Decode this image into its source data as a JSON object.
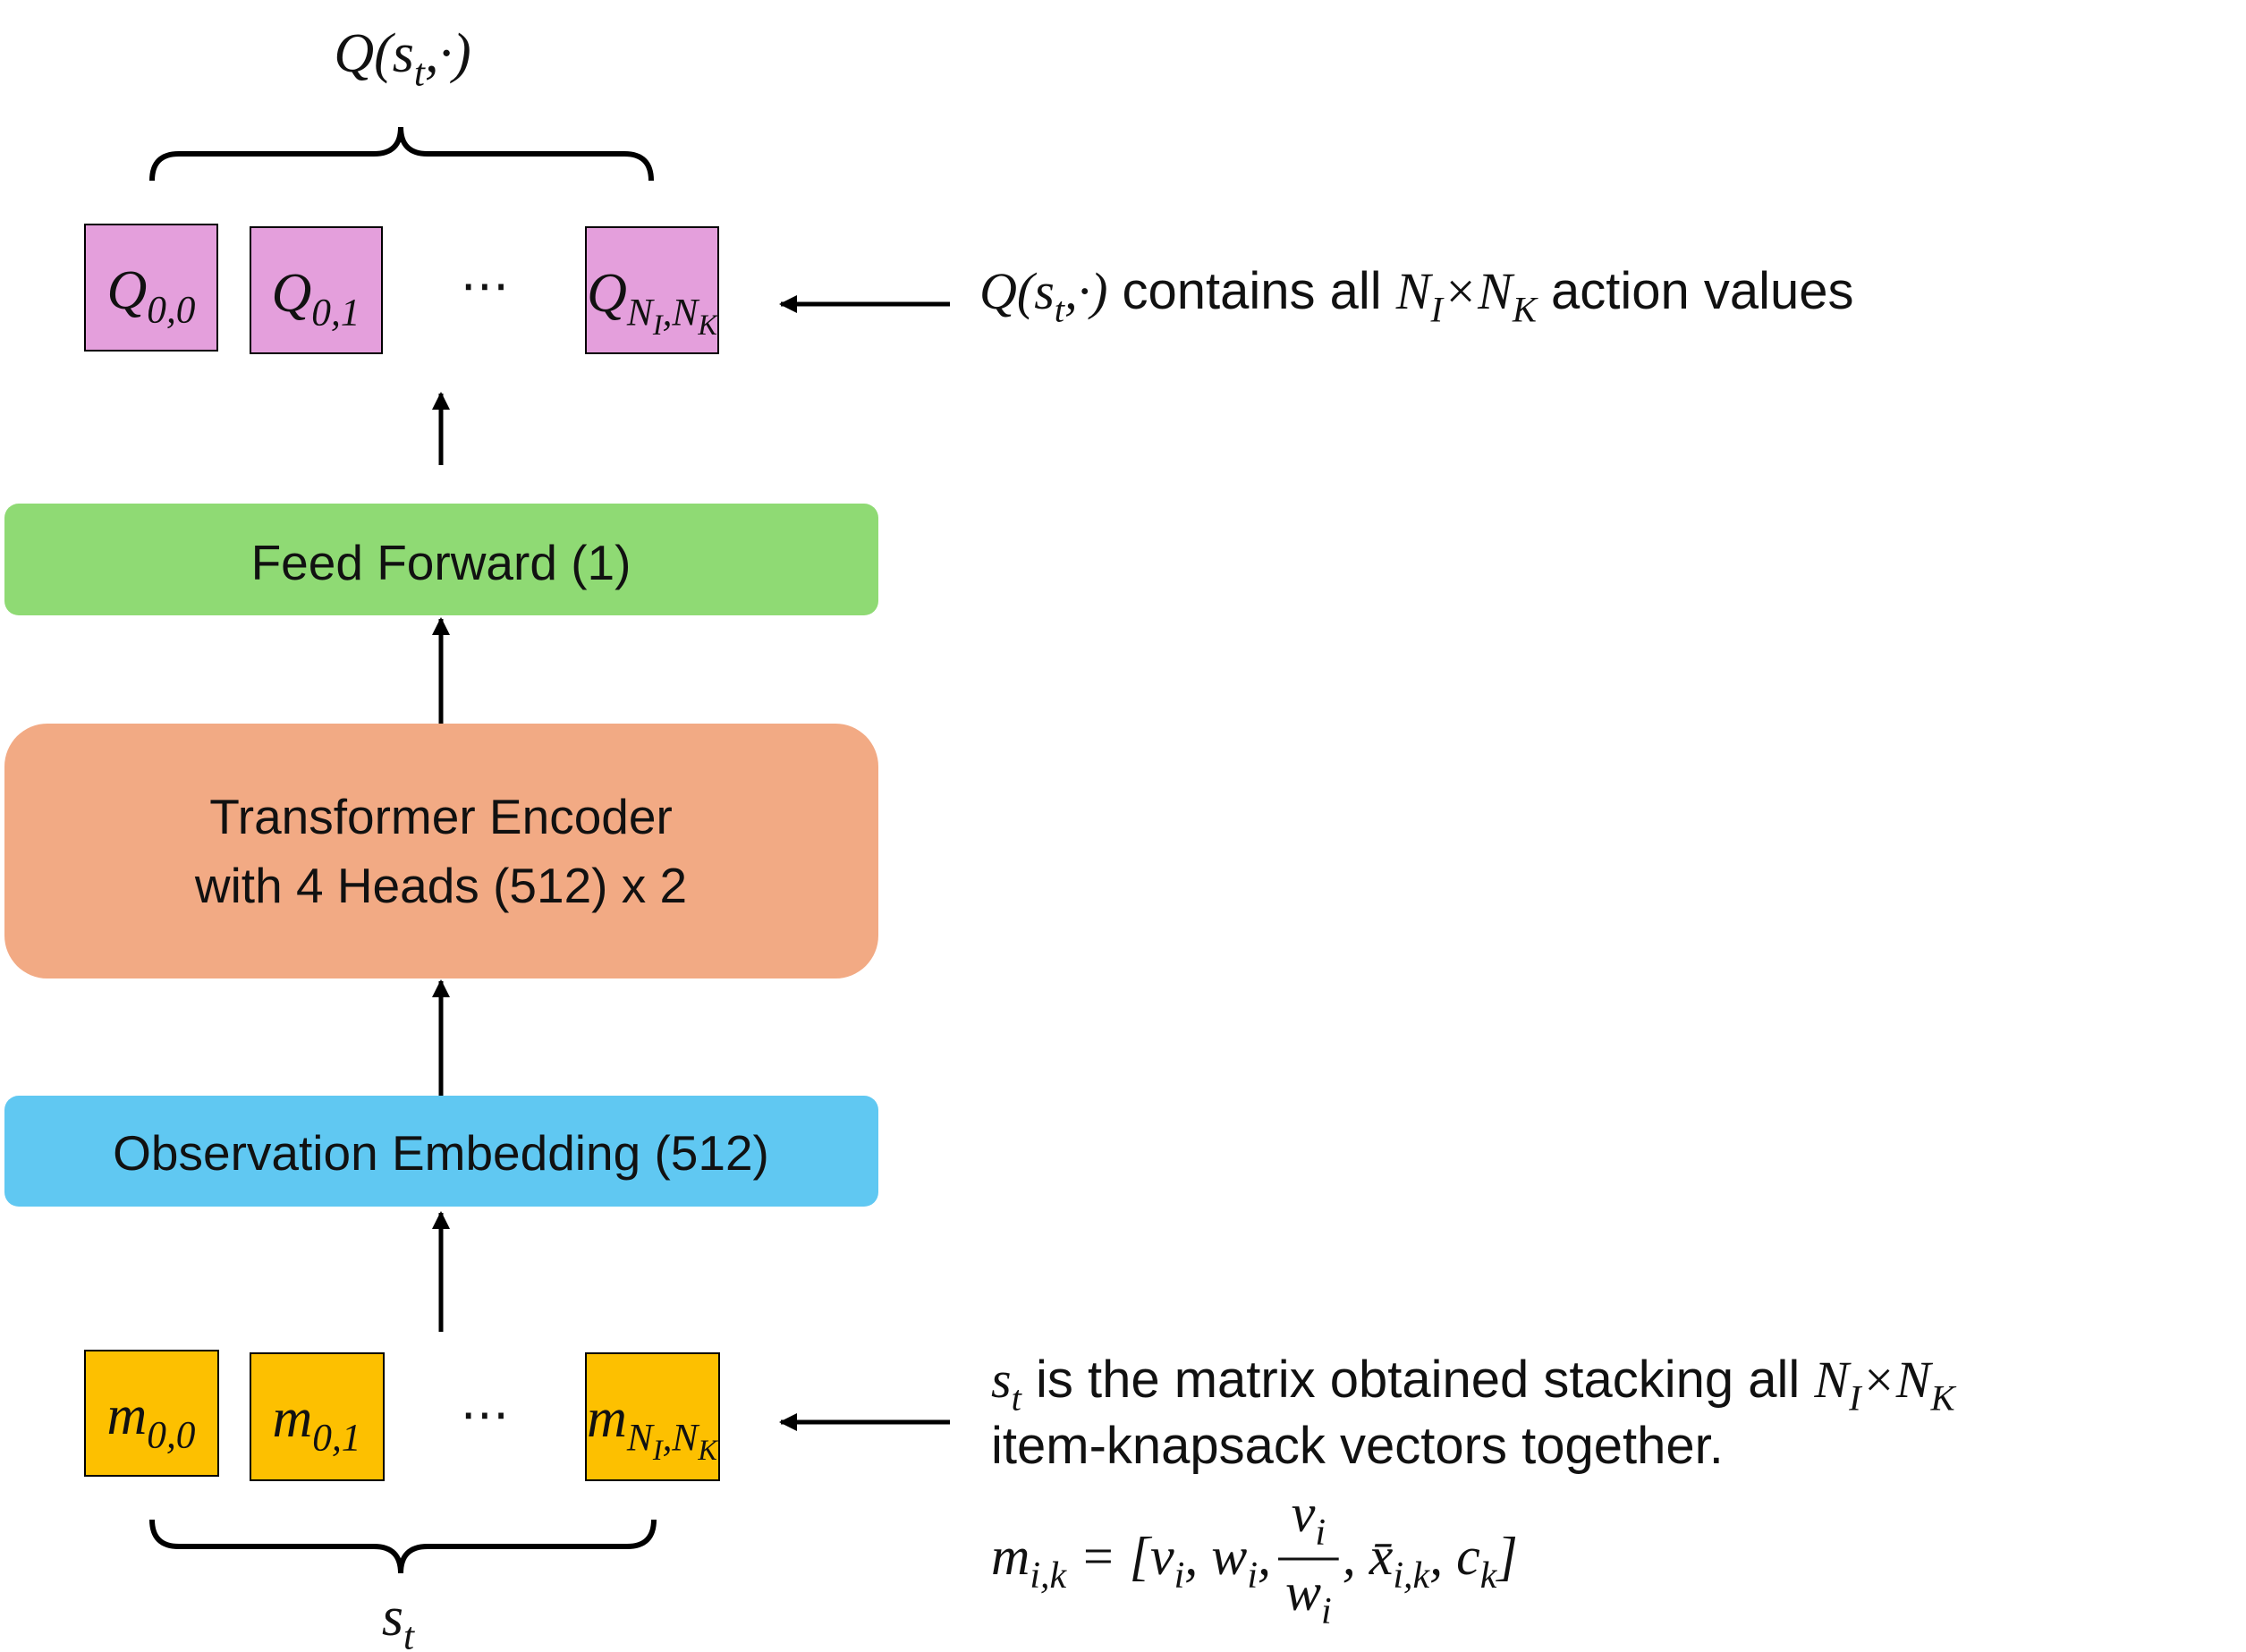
{
  "output_label": [
    {
      "m": "Q(s"
    },
    {
      "s": "t"
    },
    {
      "m": ",·)"
    }
  ],
  "q_boxes": [
    [
      {
        "m": "Q"
      },
      {
        "s": "0,0"
      }
    ],
    [
      {
        "m": "Q"
      },
      {
        "s": "0,1"
      }
    ],
    [
      {
        "m": "Q"
      },
      {
        "s": "N"
      },
      {
        "ss": "I"
      },
      {
        "s": ",N"
      },
      {
        "ss": "K"
      }
    ]
  ],
  "q_ellipsis": "⋯",
  "output_note": [
    {
      "m": "Q(s"
    },
    {
      "s": "t"
    },
    {
      "m": ",·)"
    },
    {
      "t": " contains all "
    },
    {
      "m": "N"
    },
    {
      "s": "I"
    },
    {
      "m": "×N"
    },
    {
      "s": "K"
    },
    {
      "t": " action values"
    }
  ],
  "layers": [
    {
      "lines": [
        "Feed Forward (1)"
      ]
    },
    {
      "lines": [
        "Transformer Encoder",
        "with 4 Heads (512) x 2"
      ]
    },
    {
      "lines": [
        "Observation Embedding (512)"
      ]
    }
  ],
  "m_boxes": [
    [
      {
        "m": "m"
      },
      {
        "s": "0,0"
      }
    ],
    [
      {
        "m": "m"
      },
      {
        "s": "0,1"
      }
    ],
    [
      {
        "m": "m"
      },
      {
        "s": "N"
      },
      {
        "ss": "I"
      },
      {
        "s": ",N"
      },
      {
        "ss": "K"
      }
    ]
  ],
  "m_ellipsis": "⋯",
  "input_label": [
    {
      "m": "s"
    },
    {
      "s": "t"
    }
  ],
  "input_note": {
    "line1": [
      {
        "m": "s"
      },
      {
        "s": "t"
      },
      {
        "t": " is the matrix obtained stacking all "
      },
      {
        "m": "N"
      },
      {
        "s": "I"
      },
      {
        "m": "×N"
      },
      {
        "s": "K"
      }
    ],
    "line2": "item-knapsack vectors together."
  },
  "formula": {
    "before": [
      {
        "m": "m"
      },
      {
        "s": "i,k"
      },
      {
        "m": " = [v"
      },
      {
        "s": "i"
      },
      {
        "m": ", w"
      },
      {
        "s": "i"
      },
      {
        "m": ","
      }
    ],
    "numerator": [
      {
        "m": "v"
      },
      {
        "s": "i"
      }
    ],
    "denominator": [
      {
        "m": "w"
      },
      {
        "s": "i"
      }
    ],
    "after": [
      {
        "m": ", x̄"
      },
      {
        "s": "i,k"
      },
      {
        "m": ", c"
      },
      {
        "s": "k"
      },
      {
        "m": "]"
      }
    ]
  }
}
